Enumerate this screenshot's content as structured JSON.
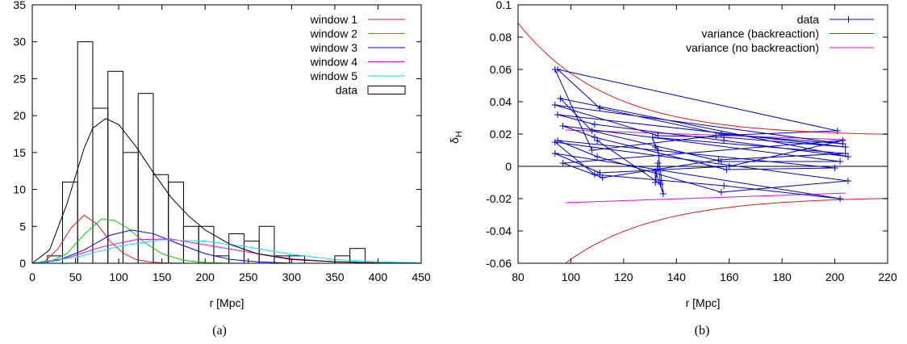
{
  "chart_data": [
    {
      "type": "bar",
      "caption": "(a)",
      "xlabel": "r [Mpc]",
      "ylabel": "",
      "xlim": [
        0,
        450
      ],
      "ylim": [
        0,
        35
      ],
      "xticks": [
        "0",
        "50",
        "100",
        "150",
        "200",
        "250",
        "300",
        "350",
        "400",
        "450"
      ],
      "yticks": [
        "0",
        "5",
        "10",
        "15",
        "20",
        "25",
        "30",
        "35"
      ],
      "legend_position": "top-right",
      "histogram": {
        "name": "data",
        "bin_width": 17.5,
        "bin_starts": [
          17.5,
          35,
          52.5,
          70,
          87.5,
          105,
          122.5,
          140,
          157.5,
          175,
          192.5,
          210,
          227.5,
          245,
          262.5,
          280,
          297.5,
          315,
          332.5,
          350,
          367.5,
          385,
          402.5
        ],
        "counts": [
          1,
          11,
          30,
          21,
          26,
          15,
          23,
          12,
          11,
          5,
          5,
          1,
          4,
          3,
          5,
          1,
          1,
          0,
          0,
          1,
          2,
          0,
          0
        ]
      },
      "curves": [
        {
          "name": "window 1",
          "color": "#e41a1c",
          "x": [
            0,
            15,
            30,
            45,
            60,
            75,
            90,
            105,
            120,
            135,
            150,
            180
          ],
          "y": [
            0,
            0.3,
            2.0,
            4.8,
            6.5,
            5.3,
            3.0,
            1.4,
            0.5,
            0.2,
            0.05,
            0
          ]
        },
        {
          "name": "window 2",
          "color": "#00cc00",
          "x": [
            0,
            20,
            40,
            60,
            80,
            95,
            110,
            130,
            150,
            175,
            200,
            230
          ],
          "y": [
            0,
            0.2,
            1.3,
            3.9,
            6.0,
            5.8,
            4.8,
            2.8,
            1.3,
            0.4,
            0.1,
            0
          ]
        },
        {
          "name": "window 3",
          "color": "#0000ff",
          "x": [
            0,
            30,
            60,
            90,
            115,
            140,
            170,
            200,
            230,
            260,
            300
          ],
          "y": [
            0,
            0.4,
            1.8,
            3.8,
            4.5,
            4.0,
            2.6,
            1.3,
            0.5,
            0.2,
            0
          ]
        },
        {
          "name": "window 4",
          "color": "#e010e0",
          "x": [
            0,
            40,
            80,
            120,
            160,
            200,
            250,
            300,
            350,
            400
          ],
          "y": [
            0,
            0.7,
            2.2,
            3.2,
            3.3,
            2.5,
            1.5,
            0.6,
            0.2,
            0.05
          ]
        },
        {
          "name": "window 5",
          "color": "#00e5ee",
          "x": [
            0,
            50,
            100,
            150,
            200,
            250,
            300,
            350,
            400,
            450
          ],
          "y": [
            0,
            0.8,
            2.3,
            3.2,
            3.0,
            2.2,
            1.2,
            0.5,
            0.2,
            0.05
          ]
        }
      ],
      "fit": {
        "x": [
          0,
          20,
          40,
          60,
          70,
          85,
          100,
          120,
          140,
          160,
          180,
          200,
          230,
          260,
          300,
          350,
          400,
          450
        ],
        "y": [
          0,
          1.8,
          8.0,
          15.6,
          18.3,
          19.6,
          18.8,
          15.8,
          12.3,
          9.0,
          6.5,
          4.5,
          2.5,
          1.3,
          0.5,
          0.2,
          0.05,
          0
        ]
      }
    },
    {
      "type": "line",
      "caption": "(b)",
      "xlabel": "r [Mpc]",
      "ylabel": "δH",
      "ylabel_main": "δ",
      "ylabel_sub": "H",
      "xlim": [
        80,
        220
      ],
      "ylim": [
        -0.06,
        0.1
      ],
      "xticks": [
        "80",
        "100",
        "120",
        "140",
        "160",
        "180",
        "200",
        "220"
      ],
      "yticks": [
        "-0.06",
        "-0.04",
        "-0.02",
        "0",
        "0.02",
        "0.04",
        "0.06",
        "0.08",
        "0.1"
      ],
      "legend_position": "top-right",
      "series": [
        {
          "name": "data",
          "color": "#0000cc",
          "x": [
            94,
            95,
            94,
            95,
            96,
            97,
            95,
            94,
            94,
            97,
            109,
            108,
            109,
            110,
            111,
            108,
            110,
            109,
            111,
            112,
            133,
            131,
            132,
            133,
            135,
            132,
            132,
            133,
            134,
            155,
            157,
            158,
            158,
            157,
            159,
            157,
            158,
            160,
            156,
            201,
            203,
            204,
            205,
            202,
            200,
            205,
            202,
            203,
            204
          ],
          "y": [
            0.06,
            0.06,
            0.038,
            0.032,
            0.042,
            0.025,
            0.016,
            0.015,
            0.008,
            0.002,
            0.026,
            0.022,
            0.018,
            0.016,
            0.036,
            0.01,
            0.006,
            -0.005,
            -0.004,
            -0.007,
            0.019,
            0.018,
            0.012,
            0.01,
            -0.017,
            -0.003,
            -0.01,
            0.002,
            -0.011,
            0.019,
            0.02,
            0.018,
            0.016,
            0.003,
            -0.002,
            -0.016,
            -0.012,
            0.0,
            0.004,
            0.022,
            0.014,
            0.012,
            0.006,
            0.003,
            -0.001,
            -0.009,
            -0.02,
            0.016,
            0.008
          ]
        },
        {
          "name": "variance (backreaction)",
          "color": "#e41a1c"
        },
        {
          "name": "variance (no backreaction)",
          "color": "#e010e0"
        }
      ],
      "zero_line": 0
    }
  ]
}
